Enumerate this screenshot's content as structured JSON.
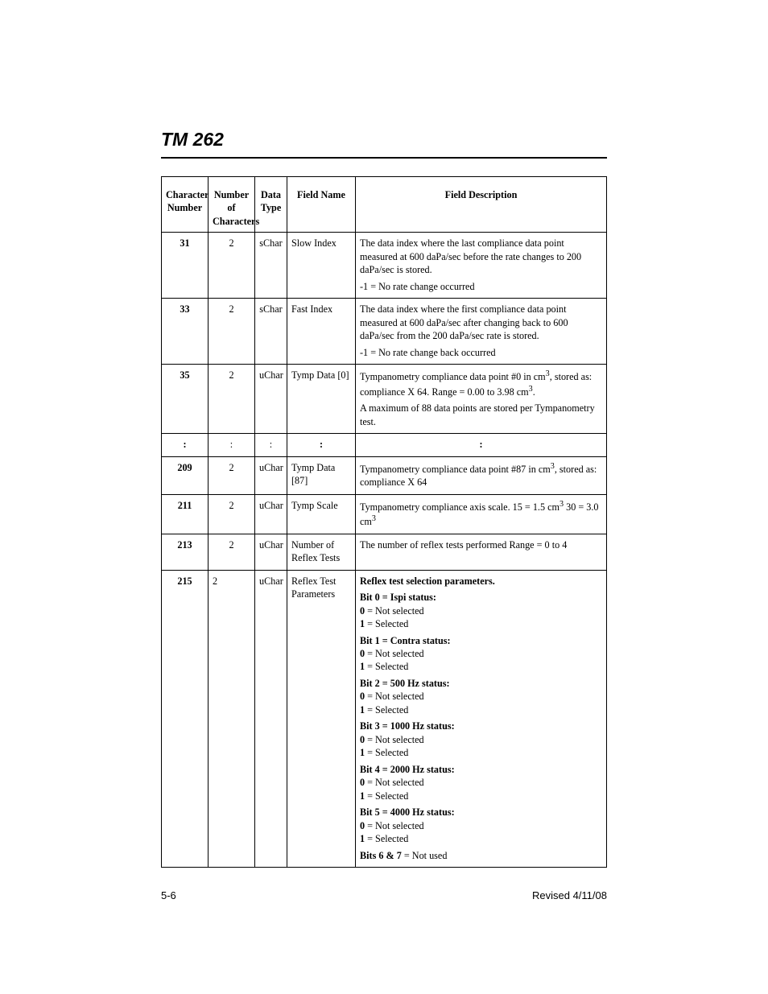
{
  "title": "TM 262",
  "footer": {
    "left": "5-6",
    "right": "Revised 4/11/08"
  },
  "columns": [
    {
      "label_l1": "Character",
      "label_l2": "Number"
    },
    {
      "label_l1": "Number of",
      "label_l2": "Characters"
    },
    {
      "label_l1": "Data",
      "label_l2": "Type"
    },
    {
      "label_l1": "Field Name",
      "label_l2": ""
    },
    {
      "label_l1": "Field Description",
      "label_l2": ""
    }
  ],
  "rows": [
    {
      "charnum": "31",
      "numchar": "2",
      "dtype": "sChar",
      "fname": "Slow Index",
      "desc": [
        {
          "type": "text",
          "value": "The data index where the last compliance data point measured at 600 daPa/sec before the rate changes to 200 daPa/sec is stored."
        },
        {
          "type": "text",
          "value": "-1 = No rate change occurred"
        }
      ]
    },
    {
      "charnum": "33",
      "numchar": "2",
      "dtype": "sChar",
      "fname": "Fast Index",
      "desc": [
        {
          "type": "text",
          "value": "The data index where the first compliance data point measured at 600 daPa/sec after changing back to 600 daPa/sec from the 200 daPa/sec rate is stored."
        },
        {
          "type": "text",
          "value": "-1 = No rate change back occurred"
        }
      ]
    },
    {
      "charnum": "35",
      "numchar": "2",
      "dtype": "uChar",
      "fname": "Tymp Data [0]",
      "desc": [
        {
          "type": "html",
          "value": "Tympanometry compliance data point #0 in cm<sup>3</sup>, stored as: compliance X 64. Range = 0.00 to 3.98 cm<sup>3</sup>."
        },
        {
          "type": "text",
          "value": "A maximum of 88 data points are stored per Tympanometry test."
        }
      ]
    },
    {
      "charnum": ":",
      "numchar": ":",
      "dtype": ":",
      "fname": ":",
      "fname_center": true,
      "desc": [
        {
          "type": "center-bold",
          "value": ":"
        }
      ]
    },
    {
      "charnum": "209",
      "numchar": "2",
      "dtype": "uChar",
      "fname": "Tymp Data [87]",
      "desc": [
        {
          "type": "html",
          "value": "Tympanometry compliance data point #87 in cm<sup>3</sup>, stored as: compliance X 64"
        }
      ]
    },
    {
      "charnum": "211",
      "numchar": "2",
      "dtype": "uChar",
      "fname": "Tymp Scale",
      "desc": [
        {
          "type": "html",
          "value": "Tympanometry compliance axis scale. 15 = 1.5 cm<sup>3</sup> 30 = 3.0 cm<sup>3</sup>"
        }
      ]
    },
    {
      "charnum": "213",
      "numchar": "2",
      "dtype": "uChar",
      "fname": "Number of Reflex Tests",
      "desc": [
        {
          "type": "text",
          "value": "The number of reflex tests performed Range = 0 to 4"
        }
      ]
    },
    {
      "charnum": "215",
      "numchar": "2",
      "numchar_align": "left",
      "dtype": "uChar",
      "fname": "Reflex Test Parameters",
      "desc": [
        {
          "type": "bold",
          "value": "Reflex test selection parameters."
        },
        {
          "type": "bitgroup",
          "title": "Bit 0 = Ispi status:",
          "lines": [
            {
              "key": "0",
              "val": " = Not selected"
            },
            {
              "key": "1",
              "val": " = Selected"
            }
          ]
        },
        {
          "type": "bitgroup",
          "title": "Bit 1 = Contra status:",
          "lines": [
            {
              "key": "0",
              "val": " = Not selected"
            },
            {
              "key": "1",
              "val": " = Selected"
            }
          ]
        },
        {
          "type": "bitgroup",
          "title": "Bit 2 = 500 Hz status:",
          "lines": [
            {
              "key": "0",
              "val": " = Not selected"
            },
            {
              "key": "1",
              "val": " = Selected"
            }
          ]
        },
        {
          "type": "bitgroup",
          "title": "Bit 3 = 1000 Hz status:",
          "lines": [
            {
              "key": "0",
              "val": " = Not selected"
            },
            {
              "key": "1",
              "val": " = Selected"
            }
          ]
        },
        {
          "type": "bitgroup",
          "title": "Bit 4 = 2000 Hz status:",
          "lines": [
            {
              "key": "0",
              "val": " = Not selected"
            },
            {
              "key": "1",
              "val": " = Selected"
            }
          ]
        },
        {
          "type": "bitgroup",
          "title": "Bit 5 = 4000 Hz status:",
          "lines": [
            {
              "key": "0",
              "val": " = Not selected"
            },
            {
              "key": "1",
              "val": " = Selected"
            }
          ]
        },
        {
          "type": "keyed",
          "key": "Bits 6 & 7",
          "val": " = Not used"
        }
      ]
    }
  ]
}
